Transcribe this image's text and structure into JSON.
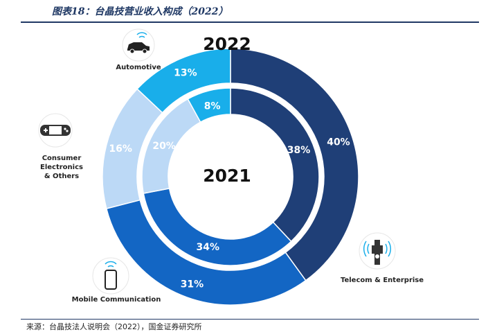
{
  "figure_title": "图表18：台晶技营业收入构成（2022）",
  "source": "来源：台晶技法人说明会（2022），国金证券研究所",
  "chart_data": {
    "type": "pie",
    "categories": [
      "Telecom & Enterprise",
      "Mobile Communication",
      "Consumer Electronics & Others",
      "Automotive"
    ],
    "category_lines": [
      [
        "Telecom & Enterprise"
      ],
      [
        "Mobile Communication"
      ],
      [
        "Consumer",
        "Electronics",
        "& Others"
      ],
      [
        "Automotive"
      ]
    ],
    "series": [
      {
        "name": "2022",
        "values": [
          40,
          31,
          16,
          13
        ],
        "labels": [
          "40%",
          "31%",
          "16%",
          "13%"
        ]
      },
      {
        "name": "2021",
        "values": [
          38,
          34,
          20,
          8
        ],
        "labels": [
          "38%",
          "34%",
          "20%",
          "8%"
        ]
      }
    ],
    "colors": [
      "#1f3f77",
      "#1366c4",
      "#bcd9f6",
      "#19aeea"
    ],
    "icons": [
      "antenna-tower-icon",
      "smartphone-icon",
      "game-console-icon",
      "car-icon"
    ]
  }
}
